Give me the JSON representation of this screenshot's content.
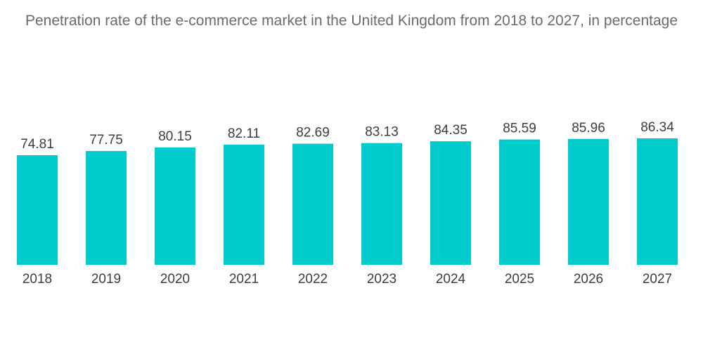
{
  "chart_data": {
    "type": "bar",
    "title": "Penetration rate of the e-commerce market in the United Kingdom from 2018 to 2027, in percentage",
    "categories": [
      "2018",
      "2019",
      "2020",
      "2021",
      "2022",
      "2023",
      "2024",
      "2025",
      "2026",
      "2027"
    ],
    "values": [
      74.81,
      77.75,
      80.15,
      82.11,
      82.69,
      83.13,
      84.35,
      85.59,
      85.96,
      86.34
    ],
    "value_labels": [
      "74.81",
      "77.75",
      "80.15",
      "82.11",
      "82.69",
      "83.13",
      "84.35",
      "85.59",
      "85.96",
      "86.34"
    ],
    "xlabel": "",
    "ylabel": "",
    "ylim": [
      0,
      86.34
    ],
    "grid": false,
    "legend": "none",
    "bar_color": "#00ccce",
    "label_color": "#3d3d3d",
    "title_color": "#6b6b6b"
  }
}
